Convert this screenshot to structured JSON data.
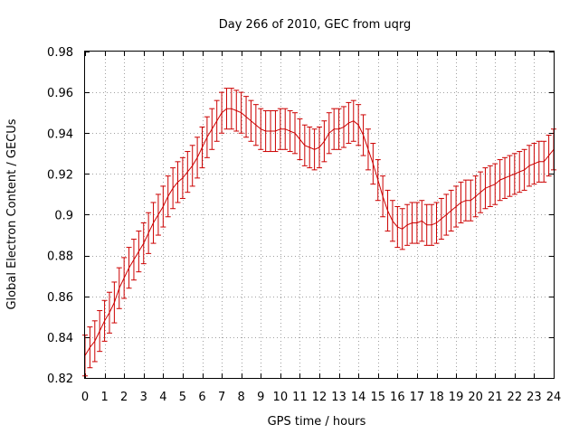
{
  "chart_data": {
    "type": "line",
    "title": "Day 266 of 2010, GEC from uqrg",
    "xlabel": "GPS time / hours",
    "ylabel": "Global Electron Content / GECUs",
    "xlim": [
      0,
      24
    ],
    "ylim": [
      0.82,
      0.98
    ],
    "grid": true,
    "series_color": "#cc0000",
    "x_ticks": [
      "0",
      "1",
      "2",
      "3",
      "4",
      "5",
      "6",
      "7",
      "8",
      "9",
      "10",
      "11",
      "12",
      "13",
      "14",
      "15",
      "16",
      "17",
      "18",
      "19",
      "20",
      "21",
      "22",
      "23",
      "24"
    ],
    "y_ticks": [
      "0.82",
      "0.84",
      "0.86",
      "0.88",
      "0.9",
      "0.92",
      "0.94",
      "0.96",
      "0.98"
    ],
    "error_half_width": 0.01,
    "x": [
      0,
      0.25,
      0.5,
      0.75,
      1,
      1.25,
      1.5,
      1.75,
      2,
      2.25,
      2.5,
      2.75,
      3,
      3.25,
      3.5,
      3.75,
      4,
      4.25,
      4.5,
      4.75,
      5,
      5.25,
      5.5,
      5.75,
      6,
      6.25,
      6.5,
      6.75,
      7,
      7.25,
      7.5,
      7.75,
      8,
      8.25,
      8.5,
      8.75,
      9,
      9.25,
      9.5,
      9.75,
      10,
      10.25,
      10.5,
      10.75,
      11,
      11.25,
      11.5,
      11.75,
      12,
      12.25,
      12.5,
      12.75,
      13,
      13.25,
      13.5,
      13.75,
      14,
      14.25,
      14.5,
      14.75,
      15,
      15.25,
      15.5,
      15.75,
      16,
      16.25,
      16.5,
      16.75,
      17,
      17.25,
      17.5,
      17.75,
      18,
      18.25,
      18.5,
      18.75,
      19,
      19.25,
      19.5,
      19.75,
      20,
      20.25,
      20.5,
      20.75,
      21,
      21.25,
      21.5,
      21.75,
      22,
      22.25,
      22.5,
      22.75,
      23,
      23.25,
      23.5,
      23.75,
      24
    ],
    "y": [
      0.831,
      0.835,
      0.838,
      0.843,
      0.848,
      0.852,
      0.857,
      0.864,
      0.869,
      0.874,
      0.878,
      0.882,
      0.886,
      0.891,
      0.896,
      0.9,
      0.904,
      0.909,
      0.913,
      0.916,
      0.918,
      0.921,
      0.924,
      0.928,
      0.933,
      0.938,
      0.942,
      0.946,
      0.95,
      0.952,
      0.952,
      0.951,
      0.95,
      0.948,
      0.946,
      0.944,
      0.942,
      0.941,
      0.941,
      0.941,
      0.942,
      0.942,
      0.941,
      0.94,
      0.937,
      0.934,
      0.933,
      0.932,
      0.933,
      0.936,
      0.94,
      0.942,
      0.942,
      0.943,
      0.945,
      0.946,
      0.944,
      0.939,
      0.932,
      0.925,
      0.917,
      0.909,
      0.902,
      0.897,
      0.894,
      0.893,
      0.895,
      0.896,
      0.896,
      0.897,
      0.895,
      0.895,
      0.896,
      0.898,
      0.9,
      0.902,
      0.904,
      0.906,
      0.907,
      0.907,
      0.909,
      0.911,
      0.913,
      0.914,
      0.915,
      0.917,
      0.918,
      0.919,
      0.92,
      0.921,
      0.922,
      0.924,
      0.925,
      0.926,
      0.926,
      0.929,
      0.932
    ]
  }
}
